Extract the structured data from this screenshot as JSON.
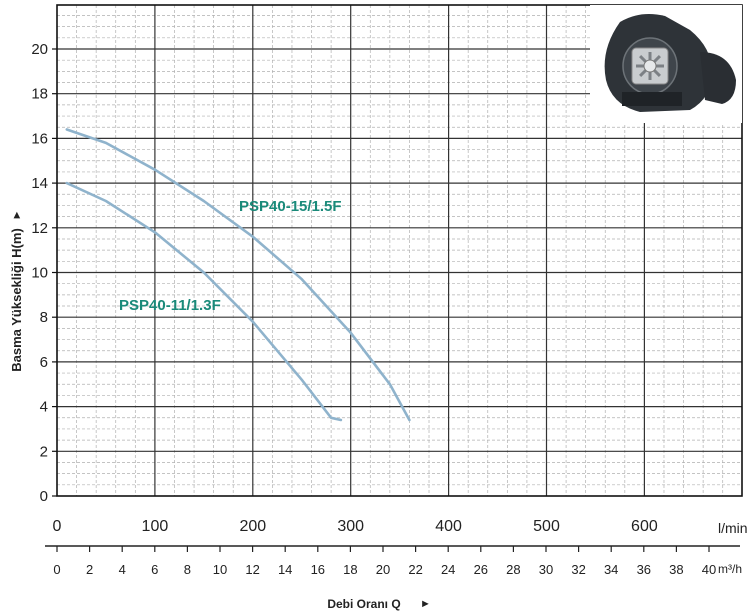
{
  "chart_data": {
    "type": "line",
    "ylabel": "Basma Yüksekliği H(m)",
    "xlabel": "Debi Oranı Q",
    "x_unit_primary": "l/min",
    "x_unit_secondary": "m³/h",
    "xlim": [
      0,
      700
    ],
    "ylim": [
      0,
      22
    ],
    "grid": true,
    "x_ticks": [
      "0",
      "100",
      "200",
      "300",
      "400",
      "500",
      "600"
    ],
    "y_ticks": [
      "0",
      "2",
      "4",
      "6",
      "8",
      "10",
      "12",
      "14",
      "16",
      "18",
      "20"
    ],
    "secondary_ticks": [
      "0",
      "2",
      "4",
      "6",
      "8",
      "10",
      "12",
      "14",
      "16",
      "18",
      "20",
      "22",
      "24",
      "26",
      "28",
      "30",
      "32",
      "34",
      "36",
      "38",
      "40"
    ],
    "series": [
      {
        "name": "PSP40-15/1.5F",
        "color": "#8fb3cc",
        "label_color": "#1a8a7a",
        "x": [
          10,
          50,
          100,
          150,
          200,
          250,
          300,
          340,
          360
        ],
        "y": [
          16.4,
          15.8,
          14.6,
          13.2,
          11.6,
          9.7,
          7.3,
          5.0,
          3.4
        ]
      },
      {
        "name": "PSP40-11/1.3F",
        "color": "#8fb3cc",
        "label_color": "#1a8a7a",
        "x": [
          10,
          50,
          100,
          150,
          200,
          250,
          280,
          290
        ],
        "y": [
          14.0,
          13.2,
          11.8,
          10.0,
          7.8,
          5.2,
          3.5,
          3.4
        ]
      }
    ]
  }
}
